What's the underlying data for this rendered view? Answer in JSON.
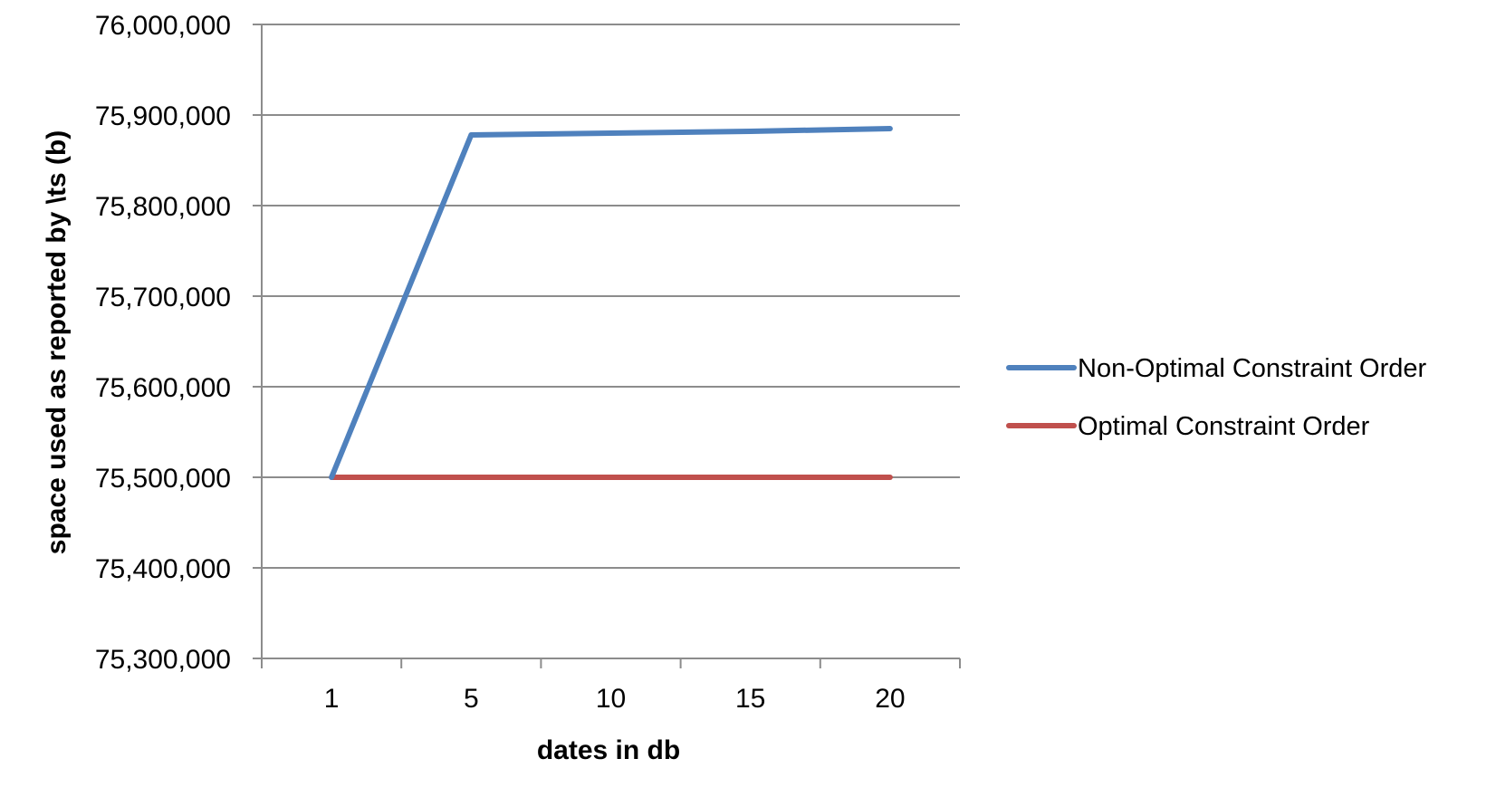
{
  "chart_data": {
    "type": "line",
    "title": "",
    "xlabel": "dates in db",
    "ylabel": "space used as reported by \\ts (b)",
    "categories": [
      "1",
      "5",
      "10",
      "15",
      "20"
    ],
    "ylim": [
      75300000,
      76000000
    ],
    "ytick_step": 100000,
    "yticks": [
      "75,300,000",
      "75,400,000",
      "75,500,000",
      "75,600,000",
      "75,700,000",
      "75,800,000",
      "75,900,000",
      "76,000,000"
    ],
    "grid": true,
    "legend_position": "right",
    "series": [
      {
        "name": "Non-Optimal Constraint Order",
        "color": "#4f81bd",
        "values": [
          75500000,
          75878000,
          75880000,
          75882000,
          75885000
        ]
      },
      {
        "name": "Optimal Constraint Order",
        "color": "#c0504d",
        "values": [
          75500000,
          75500000,
          75500000,
          75500000,
          75500000
        ]
      }
    ]
  }
}
